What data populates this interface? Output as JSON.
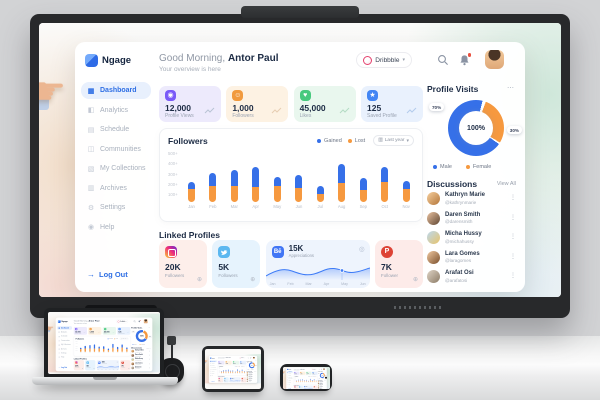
{
  "app": {
    "brand": "Ngage",
    "sidebar": {
      "items": [
        {
          "label": "Dashboard",
          "icon": "dashboard-icon",
          "active": true
        },
        {
          "label": "Analytics",
          "icon": "analytics-icon",
          "active": false
        },
        {
          "label": "Schedule",
          "icon": "schedule-icon",
          "active": false
        },
        {
          "label": "Communities",
          "icon": "communities-icon",
          "active": false
        },
        {
          "label": "My Collections",
          "icon": "collections-icon",
          "active": false
        },
        {
          "label": "Archives",
          "icon": "archives-icon",
          "active": false
        },
        {
          "label": "Settings",
          "icon": "settings-icon",
          "active": false
        },
        {
          "label": "Help",
          "icon": "help-icon",
          "active": false
        }
      ],
      "logout_label": "Log Out"
    },
    "header": {
      "greeting": "Good Morning,",
      "user_name": "Antor Paul",
      "subtitle": "Your overview is here",
      "account_selector": "Dribbble"
    },
    "stats": [
      {
        "value": "12,000",
        "label": "Profile Views",
        "glyph": "◉",
        "accent": "#7a5af8"
      },
      {
        "value": "1,000",
        "label": "Followers",
        "glyph": "☺",
        "accent": "#f19a3e"
      },
      {
        "value": "45,000",
        "label": "Likes",
        "glyph": "♥",
        "accent": "#47c97e"
      },
      {
        "value": "125",
        "label": "Saved Profile",
        "glyph": "★",
        "accent": "#4285f4"
      }
    ],
    "followers_section": {
      "title": "Followers",
      "legend": [
        {
          "label": "Gained",
          "color": "#3670e8"
        },
        {
          "label": "Lost",
          "color": "#f6993f"
        }
      ],
      "range_selector": "Last year"
    },
    "linked_profiles": {
      "title": "Linked Profiles",
      "cards": [
        {
          "network": "Instagram",
          "value": "20K",
          "label": "Followers"
        },
        {
          "network": "Twitter",
          "value": "5K",
          "label": "Followers"
        },
        {
          "network": "Behance",
          "value": "15K",
          "label": "Appreciations",
          "icon_text": "Bē"
        },
        {
          "network": "Pinterest",
          "value": "7K",
          "label": "Follower"
        }
      ]
    },
    "profile_visits": {
      "title": "Profile Visits",
      "center_label": "100%",
      "male_pct": "70%",
      "female_pct": "30%",
      "male_label": "Male",
      "female_label": "Female"
    },
    "discussions": {
      "title": "Discussions",
      "view_all": "View All",
      "people": [
        {
          "name": "Kathryn Marie",
          "handle": "@kathrynmarie"
        },
        {
          "name": "Daren Smith",
          "handle": "@darensmith"
        },
        {
          "name": "Micha Hussy",
          "handle": "@michahussy"
        },
        {
          "name": "Lara Gomes",
          "handle": "@laragomes"
        },
        {
          "name": "Arafat Osi",
          "handle": "@arafatosi"
        }
      ]
    }
  },
  "icons": {
    "pointing_hand": "☛",
    "logout_arrow": "→",
    "chevron_down": "▾",
    "calendar": "▥",
    "ellipsis": "⋯",
    "kebab": "⋮",
    "plus_circle": "⊕",
    "target": "◎",
    "pinterest_glyph": "P",
    "sidebar_glyphs": {
      "dashboard-icon": "▦",
      "analytics-icon": "◧",
      "schedule-icon": "▤",
      "communities-icon": "◫",
      "collections-icon": "▧",
      "archives-icon": "▥",
      "settings-icon": "⚙",
      "help-icon": "◉"
    }
  },
  "chart_data": [
    {
      "type": "bar",
      "stacked": true,
      "title": "Followers",
      "categories": [
        "Jan",
        "Feb",
        "Mar",
        "Apr",
        "May",
        "Jun",
        "Jul",
        "Aug",
        "Sep",
        "Oct",
        "Nov"
      ],
      "series": [
        {
          "name": "Gained",
          "color": "#3670e8",
          "values": [
            70,
            125,
            160,
            200,
            85,
            130,
            75,
            190,
            120,
            150,
            80
          ]
        },
        {
          "name": "Lost",
          "color": "#f6993f",
          "values": [
            130,
            165,
            160,
            155,
            165,
            145,
            85,
            195,
            125,
            200,
            135
          ]
        }
      ],
      "yticks": [
        "500+",
        "400+",
        "300+",
        "200+",
        "100+"
      ],
      "ylim": [
        0,
        520
      ],
      "legend_position": "top-right",
      "grid": false
    },
    {
      "type": "pie",
      "donut": true,
      "title": "Profile Visits",
      "labels": [
        "Male",
        "Female"
      ],
      "values": [
        70,
        30
      ],
      "colors": [
        "#3670e8",
        "#f6993f"
      ],
      "center_label": "100%",
      "legend_position": "bottom"
    },
    {
      "type": "line",
      "title": "Behance Appreciations",
      "x": [
        "Jan",
        "Feb",
        "Mar",
        "Apr",
        "May",
        "Jun"
      ],
      "values": [
        9,
        12,
        10,
        11,
        15,
        12
      ],
      "value_label": "15K",
      "highlight_x": "May"
    }
  ]
}
